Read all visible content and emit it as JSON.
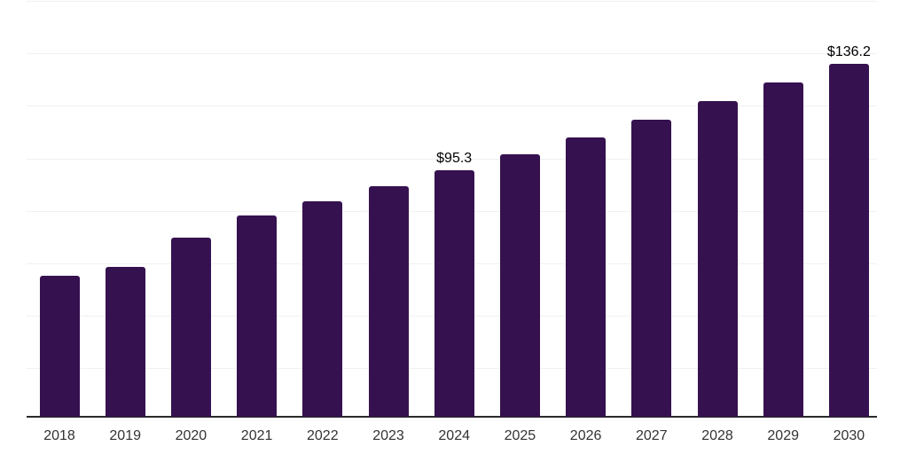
{
  "chart_data": {
    "type": "bar",
    "title": "",
    "xlabel": "",
    "ylabel": "",
    "categories": [
      "2018",
      "2019",
      "2020",
      "2021",
      "2022",
      "2023",
      "2024",
      "2025",
      "2026",
      "2027",
      "2028",
      "2029",
      "2030"
    ],
    "values": [
      55.2,
      58.6,
      69.8,
      78.3,
      83.6,
      89.4,
      95.3,
      101.6,
      107.9,
      114.8,
      121.7,
      128.8,
      136.2
    ],
    "data_labels": {
      "2024": "$95.3",
      "2030": "$136.2"
    },
    "ylim": [
      0,
      160
    ],
    "gridline_step": 20,
    "grid": "horizontal",
    "legend_position": "none",
    "colors": {
      "bar": "#36114F",
      "axis_line": "#2A2A2A",
      "gridline": "#F1F1F1",
      "data_label": "#000000",
      "tick_label": "#333333",
      "background": "#FFFFFF"
    }
  }
}
